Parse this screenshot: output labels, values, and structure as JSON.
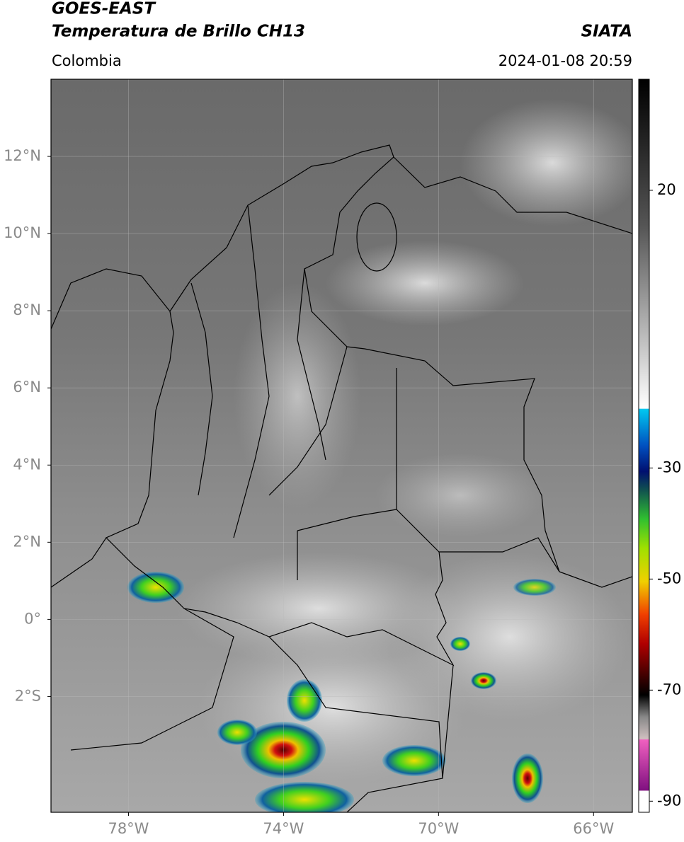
{
  "header": {
    "title": "GOES-EAST",
    "subtitle": "Temperatura de Brillo CH13",
    "agency": "SIATA",
    "region": "Colombia",
    "datetime": "2024-01-08 20:59"
  },
  "map": {
    "lonlim": [
      -80,
      -65
    ],
    "latlim": [
      -5,
      14
    ],
    "lonticks": [
      {
        "value": -78,
        "label": "78°W"
      },
      {
        "value": -74,
        "label": "74°W"
      },
      {
        "value": -70,
        "label": "70°W"
      },
      {
        "value": -66,
        "label": "66°W"
      }
    ],
    "latticks": [
      {
        "value": 12,
        "label": "12°N"
      },
      {
        "value": 10,
        "label": "10°N"
      },
      {
        "value": 8,
        "label": "8°N"
      },
      {
        "value": 6,
        "label": "6°N"
      },
      {
        "value": 4,
        "label": "4°N"
      },
      {
        "value": 2,
        "label": "2°N"
      },
      {
        "value": 0,
        "label": "0°"
      },
      {
        "value": -2,
        "label": "2°S"
      }
    ],
    "grid": true
  },
  "colorbar": {
    "lim": [
      -92,
      40
    ],
    "ticks": [
      20,
      -30,
      -50,
      -70,
      -90
    ]
  }
}
